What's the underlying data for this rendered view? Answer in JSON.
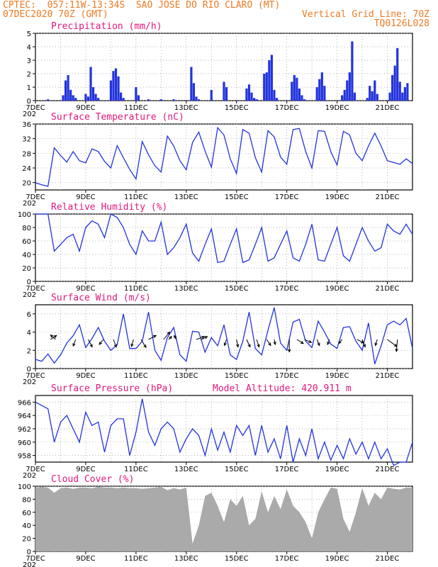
{
  "header": {
    "line1_left": "CPTEC:  057:11W-13:34S  SAO JOSE DO RIO CLARO (MT)",
    "line2_left": "07DEC2020 70Z (GMT)",
    "line2_right": "Vertical Grid Line: 70Z",
    "line3_right": "TQ0126L028"
  },
  "x_labels": [
    "7DEC",
    "9DEC",
    "11DEC",
    "13DEC",
    "15DEC",
    "17DEC",
    "19DEC",
    "21DEC"
  ],
  "x_year_stub": "202",
  "colors": {
    "header": "#ee7a22",
    "title": "#e0187c",
    "series": "#2233dd",
    "cloud": "#aaaaaa",
    "arrow": "#000000"
  },
  "chart_data": [
    {
      "type": "bar",
      "title": "Precipitation (mm/h)",
      "ylim": [
        0,
        5
      ],
      "yticks": [
        0,
        1,
        2,
        3,
        4,
        5
      ],
      "x_unit": "days since 7DEC",
      "x": [
        0.5,
        1.1,
        1.2,
        1.3,
        1.4,
        1.5,
        1.6,
        2.0,
        2.1,
        2.2,
        2.3,
        2.4,
        2.5,
        3.0,
        3.1,
        3.2,
        3.3,
        3.4,
        3.5,
        4.0,
        4.1,
        4.5,
        5.0,
        5.5,
        6.2,
        6.3,
        6.4,
        6.5,
        7.0,
        7.5,
        7.6,
        8.4,
        8.5,
        8.6,
        8.7,
        8.8,
        9.1,
        9.2,
        9.3,
        9.4,
        9.5,
        9.6,
        10.2,
        10.3,
        10.4,
        10.5,
        10.6,
        10.7,
        11.2,
        11.3,
        11.4,
        11.5,
        12.2,
        12.3,
        12.4,
        12.5,
        12.6,
        12.7,
        13.2,
        13.3,
        13.4,
        13.5,
        13.6,
        14.1,
        14.2,
        14.3,
        14.4,
        14.5,
        14.6,
        14.7,
        14.8
      ],
      "values": [
        0.1,
        0.4,
        1.5,
        1.9,
        0.8,
        0.4,
        0.2,
        0.5,
        0.3,
        2.5,
        1.0,
        0.5,
        0.2,
        1.5,
        2.2,
        2.4,
        1.8,
        0.6,
        0.2,
        1.0,
        0.4,
        0.1,
        0.1,
        0.1,
        2.5,
        1.3,
        0.3,
        0.1,
        0.8,
        1.4,
        1.0,
        0.9,
        1.2,
        0.6,
        0.2,
        0.1,
        2.0,
        2.1,
        3.0,
        3.4,
        0.8,
        0.2,
        1.4,
        1.9,
        1.7,
        0.9,
        0.4,
        0.1,
        1.0,
        1.6,
        2.1,
        1.1,
        0.4,
        0.8,
        1.5,
        2.1,
        4.4,
        0.6,
        0.2,
        1.1,
        0.7,
        1.5,
        0.5,
        0.6,
        1.9,
        2.6,
        3.9,
        1.4,
        0.6,
        1.0,
        1.3
      ]
    },
    {
      "type": "line",
      "title": "Surface Temperature (nC)",
      "ylim": [
        18,
        36
      ],
      "yticks": [
        20,
        24,
        28,
        32,
        36
      ],
      "x_unit": "days since 7DEC",
      "x": [
        0.0,
        0.25,
        0.5,
        0.75,
        1.0,
        1.25,
        1.5,
        1.75,
        2.0,
        2.25,
        2.5,
        2.75,
        3.0,
        3.25,
        3.5,
        3.75,
        4.0,
        4.25,
        4.5,
        4.75,
        5.0,
        5.25,
        5.5,
        5.75,
        6.0,
        6.25,
        6.5,
        6.75,
        7.0,
        7.25,
        7.5,
        7.75,
        8.0,
        8.25,
        8.5,
        8.75,
        9.0,
        9.25,
        9.5,
        9.75,
        10.0,
        10.25,
        10.5,
        10.75,
        11.0,
        11.25,
        11.5,
        11.75,
        12.0,
        12.25,
        12.5,
        12.75,
        13.0,
        13.25,
        13.5,
        13.75,
        14.0,
        14.25,
        14.5,
        14.75,
        15.0
      ],
      "values": [
        20.0,
        19.4,
        19.0,
        29.5,
        27.4,
        25.6,
        28.5,
        26.0,
        25.4,
        29.2,
        28.5,
        25.8,
        24.0,
        30.1,
        26.8,
        23.6,
        21.0,
        31.2,
        27.6,
        24.6,
        22.9,
        32.7,
        30.0,
        26.0,
        23.5,
        31.0,
        33.8,
        28.6,
        24.2,
        35.0,
        33.0,
        26.5,
        22.5,
        34.5,
        33.5,
        26.8,
        22.9,
        34.2,
        32.5,
        27.0,
        25.0,
        34.5,
        34.8,
        28.5,
        24.0,
        34.2,
        34.0,
        28.5,
        24.8,
        34.0,
        33.0,
        28.0,
        26.0,
        30.0,
        33.5,
        30.0,
        26.0,
        25.5,
        25.0,
        26.5,
        25.2
      ]
    },
    {
      "type": "line",
      "title": "Relative Humidity (%)",
      "ylim": [
        0,
        100
      ],
      "yticks": [
        0,
        20,
        40,
        60,
        80,
        100
      ],
      "x_unit": "days since 7DEC",
      "x": [
        0.0,
        0.25,
        0.5,
        0.75,
        1.0,
        1.25,
        1.5,
        1.75,
        2.0,
        2.25,
        2.5,
        2.75,
        3.0,
        3.25,
        3.5,
        3.75,
        4.0,
        4.25,
        4.5,
        4.75,
        5.0,
        5.25,
        5.5,
        5.75,
        6.0,
        6.25,
        6.5,
        6.75,
        7.0,
        7.25,
        7.5,
        7.75,
        8.0,
        8.25,
        8.5,
        8.75,
        9.0,
        9.25,
        9.5,
        9.75,
        10.0,
        10.25,
        10.5,
        10.75,
        11.0,
        11.25,
        11.5,
        11.75,
        12.0,
        12.25,
        12.5,
        12.75,
        13.0,
        13.25,
        13.5,
        13.75,
        14.0,
        14.25,
        14.5,
        14.75,
        15.0
      ],
      "values": [
        100,
        100,
        100,
        45,
        55,
        65,
        70,
        45,
        80,
        90,
        85,
        65,
        100,
        95,
        80,
        55,
        40,
        75,
        60,
        60,
        88,
        40,
        50,
        65,
        85,
        42,
        30,
        55,
        78,
        28,
        30,
        55,
        78,
        28,
        32,
        55,
        80,
        30,
        35,
        55,
        75,
        35,
        30,
        55,
        85,
        32,
        30,
        55,
        80,
        38,
        30,
        55,
        80,
        60,
        45,
        50,
        85,
        75,
        70,
        85,
        70
      ]
    },
    {
      "type": "line",
      "title": "Surface Wind (m/s)",
      "ylim": [
        0,
        7
      ],
      "yticks": [
        0,
        2,
        4,
        6
      ],
      "x_unit": "days since 7DEC",
      "x": [
        0.0,
        0.25,
        0.5,
        0.75,
        1.0,
        1.25,
        1.5,
        1.75,
        2.0,
        2.25,
        2.5,
        2.75,
        3.0,
        3.25,
        3.5,
        3.75,
        4.0,
        4.25,
        4.5,
        4.75,
        5.0,
        5.25,
        5.5,
        5.75,
        6.0,
        6.25,
        6.5,
        6.75,
        7.0,
        7.25,
        7.5,
        7.75,
        8.0,
        8.25,
        8.5,
        8.75,
        9.0,
        9.25,
        9.5,
        9.75,
        10.0,
        10.25,
        10.5,
        10.75,
        11.0,
        11.25,
        11.5,
        11.75,
        12.0,
        12.25,
        12.5,
        12.75,
        13.0,
        13.25,
        13.5,
        13.75,
        14.0,
        14.25,
        14.5,
        14.75,
        15.0
      ],
      "values": [
        1.0,
        0.8,
        1.6,
        0.6,
        1.5,
        2.8,
        3.6,
        4.8,
        2.3,
        3.3,
        4.5,
        3.0,
        2.0,
        2.6,
        6.0,
        2.2,
        2.2,
        3.0,
        6.2,
        2.0,
        0.9,
        3.4,
        4.5,
        1.5,
        0.8,
        4.1,
        4.0,
        1.8,
        3.4,
        2.5,
        4.8,
        1.5,
        1.0,
        3.0,
        6.2,
        2.2,
        1.5,
        4.2,
        6.7,
        2.8,
        2.0,
        5.1,
        5.4,
        3.0,
        2.3,
        5.2,
        4.0,
        2.7,
        2.2,
        4.5,
        4.6,
        3.0,
        2.0,
        5.0,
        0.5,
        2.5,
        4.8,
        5.2,
        4.8,
        5.5,
        2.2
      ],
      "arrows": {
        "x": [
          0.6,
          0.8,
          1.6,
          2.1,
          2.7,
          3.1,
          3.9,
          4.2,
          4.5,
          5.1,
          5.3,
          5.6,
          6.4,
          6.6,
          7.6,
          8.0,
          8.4,
          8.8,
          9.2,
          9.5,
          10.1,
          10.4,
          10.7,
          11.2,
          11.7,
          12.2,
          12.8,
          13.0,
          13.6,
          14.0,
          14.4
        ],
        "u": [
          1.2,
          -1.0,
          -0.5,
          0.8,
          -0.8,
          0.6,
          -0.4,
          1.0,
          1.5,
          1.2,
          0.6,
          -0.4,
          1.6,
          1.2,
          -0.4,
          0.3,
          0.7,
          0.5,
          0.8,
          0.2,
          0.0,
          1.3,
          1.4,
          0.5,
          -0.4,
          -0.7,
          1.3,
          0.6,
          -0.4,
          1.9,
          -0.2
        ],
        "v": [
          0.8,
          0.9,
          -1.3,
          -1.5,
          -1.0,
          -1.5,
          -1.4,
          -1.6,
          0.8,
          1.5,
          0.6,
          0.8,
          0.6,
          0.6,
          -1.2,
          -1.5,
          -1.5,
          -1.5,
          -1.2,
          -1.0,
          -2.5,
          -0.8,
          -0.6,
          -1.2,
          -1.0,
          -0.8,
          -0.7,
          -1.5,
          -1.2,
          -1.4,
          -2.4
        ]
      }
    },
    {
      "type": "line",
      "title": "Surface Pressure (hPa)",
      "annotation": "Model Altitude: 420.911 m",
      "ylim": [
        957,
        967
      ],
      "yticks": [
        958,
        960,
        962,
        964,
        966
      ],
      "x_unit": "days since 7DEC",
      "x": [
        0.0,
        0.25,
        0.5,
        0.75,
        1.0,
        1.25,
        1.5,
        1.75,
        2.0,
        2.25,
        2.5,
        2.75,
        3.0,
        3.25,
        3.5,
        3.75,
        4.0,
        4.25,
        4.5,
        4.75,
        5.0,
        5.25,
        5.5,
        5.75,
        6.0,
        6.25,
        6.5,
        6.75,
        7.0,
        7.25,
        7.5,
        7.75,
        8.0,
        8.25,
        8.5,
        8.75,
        9.0,
        9.25,
        9.5,
        9.75,
        10.0,
        10.25,
        10.5,
        10.75,
        11.0,
        11.25,
        11.5,
        11.75,
        12.0,
        12.25,
        12.5,
        12.75,
        13.0,
        13.25,
        13.5,
        13.75,
        14.0,
        14.25,
        14.5,
        14.75,
        15.0
      ],
      "values": [
        966.0,
        965.5,
        965.0,
        960.0,
        963.0,
        964.0,
        962.0,
        960.0,
        964.5,
        962.5,
        963.0,
        958.5,
        962.5,
        963.5,
        963.5,
        958.0,
        961.5,
        966.5,
        961.5,
        959.5,
        962.0,
        963.0,
        962.0,
        958.5,
        960.5,
        962.0,
        961.0,
        958.0,
        962.0,
        958.8,
        961.5,
        958.5,
        962.5,
        961.0,
        962.5,
        958.0,
        962.5,
        958.5,
        960.5,
        957.5,
        962.5,
        957.0,
        960.5,
        958.0,
        962.0,
        957.5,
        960.0,
        957.3,
        959.5,
        957.5,
        960.5,
        958.2,
        960.0,
        957.5,
        960.0,
        957.5,
        959.0,
        956.5,
        957.0,
        957.0,
        960.0
      ]
    },
    {
      "type": "area",
      "title": "Cloud Cover (%)",
      "ylim": [
        0,
        100
      ],
      "yticks": [
        0,
        20,
        40,
        60,
        80,
        100
      ],
      "x_unit": "days since 7DEC",
      "x": [
        0.0,
        0.25,
        0.5,
        0.75,
        1.0,
        1.25,
        1.5,
        1.75,
        2.0,
        2.25,
        2.5,
        2.75,
        3.0,
        3.25,
        3.5,
        3.75,
        4.0,
        4.25,
        4.5,
        4.75,
        5.0,
        5.25,
        5.5,
        5.75,
        6.0,
        6.25,
        6.5,
        6.75,
        7.0,
        7.25,
        7.5,
        7.75,
        8.0,
        8.25,
        8.5,
        8.75,
        9.0,
        9.25,
        9.5,
        9.75,
        10.0,
        10.25,
        10.5,
        10.75,
        11.0,
        11.25,
        11.5,
        11.75,
        12.0,
        12.25,
        12.5,
        12.75,
        13.0,
        13.25,
        13.5,
        13.75,
        14.0,
        14.25,
        14.5,
        14.75,
        15.0
      ],
      "values": [
        98,
        99,
        98,
        90,
        97,
        98,
        96,
        98,
        98,
        97,
        99,
        98,
        98,
        97,
        98,
        97,
        97,
        96,
        97,
        98,
        99,
        94,
        97,
        95,
        98,
        12,
        40,
        85,
        90,
        70,
        45,
        80,
        70,
        85,
        40,
        50,
        92,
        60,
        85,
        65,
        95,
        70,
        60,
        45,
        20,
        60,
        80,
        98,
        96,
        50,
        30,
        60,
        97,
        70,
        90,
        80,
        98,
        96,
        95,
        98,
        98
      ]
    }
  ]
}
